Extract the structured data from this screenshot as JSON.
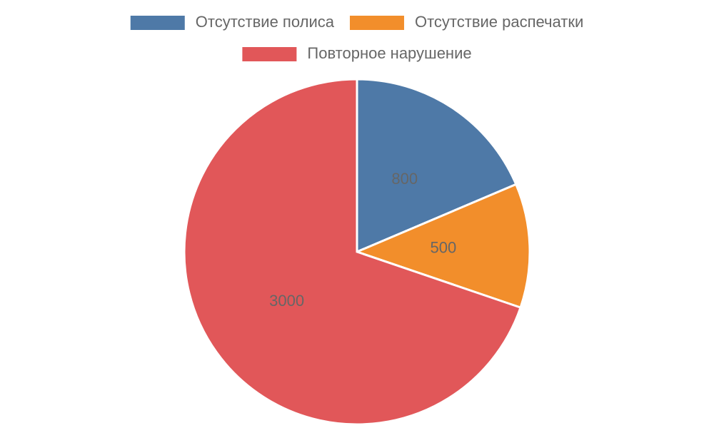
{
  "chart_data": {
    "type": "pie",
    "categories": [
      "Отсутствие полиса",
      "Отсутствие распечатки",
      "Повторное нарушение"
    ],
    "values": [
      800,
      500,
      3000
    ],
    "colors": [
      "#4e79a7",
      "#f28e2b",
      "#e15759"
    ],
    "legend": "top"
  }
}
